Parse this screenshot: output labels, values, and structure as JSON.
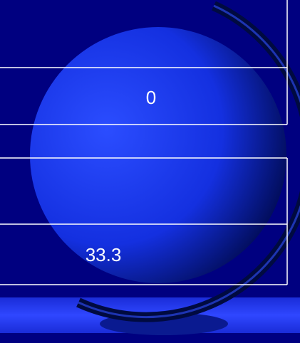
{
  "table": {
    "rows": [
      [
        "0"
      ],
      [
        "33.3"
      ]
    ]
  }
}
